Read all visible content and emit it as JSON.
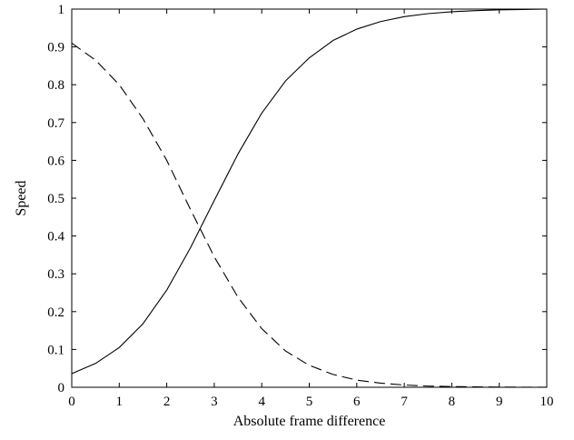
{
  "chart_data": {
    "type": "line",
    "xlabel": "Absolute frame difference",
    "ylabel": "Speed",
    "xlim": [
      0,
      10
    ],
    "ylim": [
      0,
      1
    ],
    "xticks": [
      0,
      1,
      2,
      3,
      4,
      5,
      6,
      7,
      8,
      9,
      10
    ],
    "xtick_labels": [
      "0",
      "1",
      "2",
      "3",
      "4",
      "5",
      "6",
      "7",
      "8",
      "9",
      "10"
    ],
    "yticks": [
      0,
      0.1,
      0.2,
      0.3,
      0.4,
      0.5,
      0.6,
      0.7,
      0.8,
      0.9,
      1
    ],
    "ytick_labels": [
      "0",
      "0.1",
      "0.2",
      "0.3",
      "0.4",
      "0.5",
      "0.6",
      "0.7",
      "0.8",
      "0.9",
      "1"
    ],
    "grid": false,
    "legend": null,
    "series": [
      {
        "style": "solid",
        "color": "#000000",
        "x": [
          0,
          0.5,
          1,
          1.5,
          2,
          2.5,
          3,
          3.5,
          4,
          4.5,
          5,
          5.5,
          6,
          6.5,
          7,
          7.5,
          8,
          8.5,
          9,
          9.5,
          10
        ],
        "y": [
          0.036,
          0.063,
          0.105,
          0.168,
          0.257,
          0.369,
          0.494,
          0.617,
          0.725,
          0.81,
          0.871,
          0.917,
          0.947,
          0.967,
          0.98,
          0.988,
          0.993,
          0.996,
          0.998,
          0.999,
          1.0
        ]
      },
      {
        "style": "dashed",
        "color": "#000000",
        "x": [
          0,
          0.5,
          1,
          1.5,
          2,
          2.5,
          3,
          3.5,
          4,
          4.5,
          5,
          5.5,
          6,
          6.5,
          7,
          7.5,
          8,
          8.5,
          9,
          9.5,
          10
        ],
        "y": [
          0.91,
          0.865,
          0.8,
          0.71,
          0.6,
          0.47,
          0.345,
          0.238,
          0.155,
          0.096,
          0.058,
          0.034,
          0.019,
          0.011,
          0.006,
          0.003,
          0.002,
          0.001,
          0.0005,
          0.0003,
          0.0001
        ]
      }
    ]
  }
}
